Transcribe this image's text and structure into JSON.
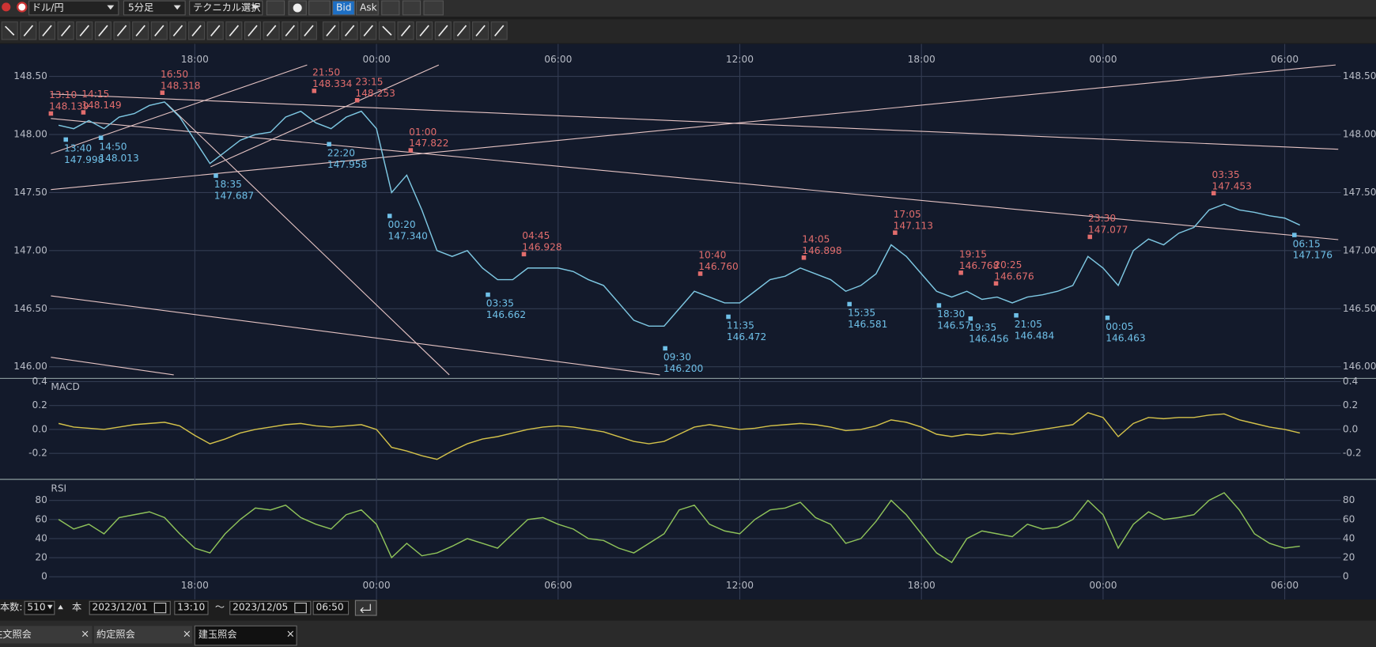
{
  "toolbar": {
    "pair": "ドル/円",
    "timeframe": "5分足",
    "technical": "テクニカル選択",
    "bid": "Bid",
    "ask": "Ask"
  },
  "chart_data": [
    {
      "type": "line",
      "color": "#7ec8e3",
      "categories": [
        null,
        null,
        null,
        null,
        null,
        null,
        null,
        null,
        null,
        "18:00",
        null,
        null,
        null,
        null,
        null,
        null,
        null,
        null,
        null,
        null,
        null,
        "00:00",
        null,
        null,
        null,
        null,
        null,
        null,
        null,
        null,
        null,
        null,
        null,
        "06:00",
        null,
        null,
        null,
        null,
        null,
        null,
        null,
        null,
        null,
        null,
        null,
        "12:00",
        null,
        null,
        null,
        null,
        null,
        null,
        null,
        null,
        null,
        null,
        null,
        "18:00",
        null,
        null,
        null,
        null,
        null,
        null,
        null,
        null,
        null,
        null,
        null,
        "00:00",
        null,
        null,
        null,
        null,
        null,
        null,
        null,
        null,
        null,
        null,
        null,
        "06:00",
        null
      ],
      "values": [
        148.08,
        148.05,
        148.12,
        148.05,
        148.15,
        148.18,
        148.25,
        148.28,
        148.15,
        147.95,
        147.75,
        147.85,
        147.95,
        148.0,
        148.02,
        148.15,
        148.2,
        148.1,
        148.05,
        148.15,
        148.2,
        148.05,
        147.5,
        147.65,
        147.35,
        147.0,
        146.95,
        147.0,
        146.85,
        146.75,
        146.75,
        146.85,
        146.85,
        146.85,
        146.82,
        146.75,
        146.7,
        146.55,
        146.4,
        146.35,
        146.35,
        146.5,
        146.65,
        146.6,
        146.55,
        146.55,
        146.65,
        146.75,
        146.78,
        146.85,
        146.8,
        146.75,
        146.65,
        146.7,
        146.8,
        147.05,
        146.95,
        146.8,
        146.65,
        146.6,
        146.65,
        146.58,
        146.6,
        146.55,
        146.6,
        146.62,
        146.65,
        146.7,
        146.95,
        146.85,
        146.7,
        147.0,
        147.1,
        147.05,
        147.15,
        147.2,
        147.35,
        147.4,
        147.35,
        147.33,
        147.3,
        147.28,
        147.22
      ],
      "ylim": [
        145.9,
        148.78
      ],
      "yticks": [
        {
          "value": 146,
          "label": "146.00"
        },
        {
          "value": 146.5,
          "label": "146.50"
        },
        {
          "value": 147,
          "label": "147.00"
        },
        {
          "value": 147.5,
          "label": "147.50"
        },
        {
          "value": 148,
          "label": "148.00"
        },
        {
          "value": 148.5,
          "label": "148.50"
        }
      ],
      "grid": true,
      "highs": [
        {
          "time": "13:10",
          "price": 148.139
        },
        {
          "time": "14:15",
          "price": 148.149
        },
        {
          "time": "16:50",
          "price": 148.318
        },
        {
          "time": "21:50",
          "price": 148.334
        },
        {
          "time": "23:15",
          "price": 148.253
        },
        {
          "time": "01:00",
          "price": 147.822
        },
        {
          "time": "04:45",
          "price": 146.928
        },
        {
          "time": "10:40",
          "price": 146.76,
          "label": "146.760"
        },
        {
          "time": "14:05",
          "price": 146.898
        },
        {
          "time": "17:05",
          "price": 147.113
        },
        {
          "time": "19:15",
          "price": 146.768
        },
        {
          "time": "20:25",
          "price": 146.676
        },
        {
          "time": "23:30",
          "price": 147.077
        },
        {
          "time": "03:35",
          "price": 147.453
        }
      ],
      "lows": [
        {
          "time": "13:40",
          "price": 147.998
        },
        {
          "time": "14:50",
          "price": 148.013
        },
        {
          "time": "18:35",
          "price": 147.687
        },
        {
          "time": "22:20",
          "price": 147.958
        },
        {
          "time": "00:20",
          "price": 147.34,
          "label": "147.340"
        },
        {
          "time": "03:35",
          "price": 146.662
        },
        {
          "time": "09:30",
          "price": 146.2,
          "label": "146.200"
        },
        {
          "time": "11:35",
          "price": 146.472
        },
        {
          "time": "15:35",
          "price": 146.581
        },
        {
          "time": "18:30",
          "price": 146.57
        },
        {
          "time": "19:35",
          "price": 146.456
        },
        {
          "time": "21:05",
          "price": 146.484
        },
        {
          "time": "00:05",
          "price": 146.463
        },
        {
          "time": "06:15",
          "price": 147.176
        }
      ]
    },
    {
      "type": "line",
      "title": "MACD",
      "color": "#d4c24a",
      "values": [
        0.05,
        0.02,
        0.01,
        0.0,
        0.02,
        0.04,
        0.05,
        0.06,
        0.03,
        -0.05,
        -0.12,
        -0.08,
        -0.03,
        0.0,
        0.02,
        0.04,
        0.05,
        0.03,
        0.02,
        0.03,
        0.04,
        0.0,
        -0.15,
        -0.18,
        -0.22,
        -0.25,
        -0.18,
        -0.12,
        -0.08,
        -0.06,
        -0.03,
        0.0,
        0.02,
        0.03,
        0.02,
        0.0,
        -0.02,
        -0.06,
        -0.1,
        -0.12,
        -0.1,
        -0.04,
        0.02,
        0.04,
        0.02,
        0.0,
        0.01,
        0.03,
        0.04,
        0.05,
        0.04,
        0.02,
        -0.01,
        0.0,
        0.03,
        0.08,
        0.06,
        0.02,
        -0.04,
        -0.06,
        -0.04,
        -0.05,
        -0.03,
        -0.04,
        -0.02,
        0.0,
        0.02,
        0.04,
        0.14,
        0.1,
        -0.06,
        0.05,
        0.1,
        0.09,
        0.1,
        0.1,
        0.12,
        0.13,
        0.08,
        0.05,
        0.02,
        0.0,
        -0.03
      ],
      "ylim": [
        -0.41,
        0.42
      ],
      "yticks": [
        {
          "value": -0.2,
          "label": "-0.2"
        },
        {
          "value": 0,
          "label": "0.0"
        },
        0.2,
        0.4
      ],
      "grid": true
    },
    {
      "type": "line",
      "title": "RSI",
      "color": "#8fc35a",
      "values": [
        60,
        50,
        55,
        45,
        62,
        65,
        68,
        62,
        45,
        30,
        25,
        45,
        60,
        72,
        70,
        75,
        62,
        55,
        50,
        65,
        70,
        55,
        20,
        35,
        22,
        25,
        32,
        40,
        35,
        30,
        45,
        60,
        62,
        55,
        50,
        40,
        38,
        30,
        25,
        35,
        45,
        70,
        75,
        55,
        48,
        45,
        60,
        70,
        72,
        78,
        62,
        55,
        35,
        40,
        58,
        80,
        65,
        45,
        25,
        15,
        40,
        48,
        45,
        42,
        55,
        50,
        52,
        60,
        80,
        65,
        30,
        55,
        68,
        60,
        62,
        65,
        80,
        88,
        70,
        45,
        35,
        30,
        32
      ],
      "ylim": [
        0,
        100
      ],
      "yticks": [
        0,
        20,
        40,
        60,
        80
      ],
      "grid": true
    }
  ],
  "footer": {
    "count_label": "本数:",
    "count": 510,
    "count_unit": "本",
    "start_date": "2023/12/01",
    "start_time": "13:10",
    "separator": "～",
    "end_date": "2023/12/05",
    "end_time": "06:50"
  },
  "tabs": [
    "注文照会",
    "約定照会",
    "建玉照会"
  ]
}
